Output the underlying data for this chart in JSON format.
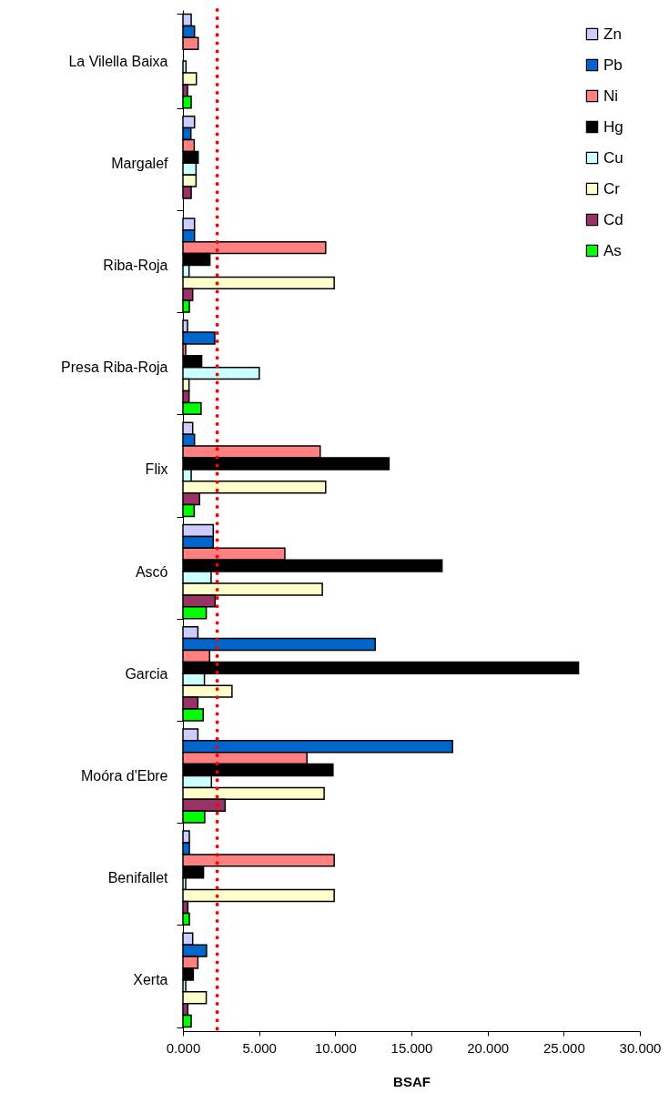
{
  "chart_data": {
    "type": "bar",
    "orientation": "horizontal",
    "xlabel": "BSAF",
    "categories": [
      "La Vilella Baixa",
      "Margalef",
      "Riba-Roja",
      "Presa Riba-Roja",
      "Flix",
      "Ascó",
      "Garcia",
      "Moóra d'Ebre",
      "Benifallet",
      "Xerta"
    ],
    "series": [
      {
        "name": "Zn",
        "color": "#ccccff",
        "values": [
          0.54,
          0.76,
          0.76,
          0.3,
          0.64,
          1.99,
          0.98,
          0.98,
          0.42,
          0.64
        ]
      },
      {
        "name": "Pb",
        "color": "#0066cc",
        "values": [
          0.76,
          0.52,
          0.76,
          2.09,
          0.76,
          1.99,
          12.62,
          17.7,
          0.42,
          1.55
        ]
      },
      {
        "name": "Ni",
        "color": "#ff8080",
        "values": [
          1.0,
          0.74,
          9.37,
          0.18,
          9.01,
          6.69,
          1.75,
          8.14,
          9.93,
          0.98
        ]
      },
      {
        "name": "Hg",
        "color": "#000000",
        "values": [
          null,
          1.0,
          1.77,
          1.23,
          13.53,
          17.01,
          25.97,
          9.85,
          1.35,
          0.68
        ]
      },
      {
        "name": "Cu",
        "color": "#ccffff",
        "values": [
          0.2,
          0.86,
          0.4,
          5.01,
          0.54,
          1.85,
          1.41,
          1.87,
          0.18,
          0.18
        ]
      },
      {
        "name": "Cr",
        "color": "#ffffcc",
        "values": [
          0.88,
          0.86,
          9.93,
          0.4,
          9.37,
          9.15,
          3.22,
          9.27,
          9.93,
          1.53
        ]
      },
      {
        "name": "Cd",
        "color": "#993366",
        "values": [
          0.3,
          0.54,
          0.64,
          0.4,
          1.09,
          2.11,
          0.98,
          2.77,
          0.32,
          0.32
        ]
      },
      {
        "name": "As",
        "color": "#00ff00",
        "values": [
          0.54,
          null,
          0.42,
          1.19,
          0.74,
          1.53,
          1.33,
          1.43,
          0.42,
          0.54
        ]
      }
    ],
    "xlim": [
      0,
      30
    ],
    "xticks": [
      {
        "value": 0,
        "label": "0.000"
      },
      {
        "value": 5,
        "label": "5.000"
      },
      {
        "value": 10,
        "label": "10.000"
      },
      {
        "value": 15,
        "label": "15.000"
      },
      {
        "value": 20,
        "label": "20.000"
      },
      {
        "value": 25,
        "label": "25.000"
      },
      {
        "value": 30,
        "label": "30.000"
      }
    ],
    "ref_lines": [
      {
        "axis": "x",
        "value": 2.25,
        "color": "#ff0000",
        "line_style": "dotted"
      }
    ],
    "legend": "top right",
    "grid": false
  }
}
